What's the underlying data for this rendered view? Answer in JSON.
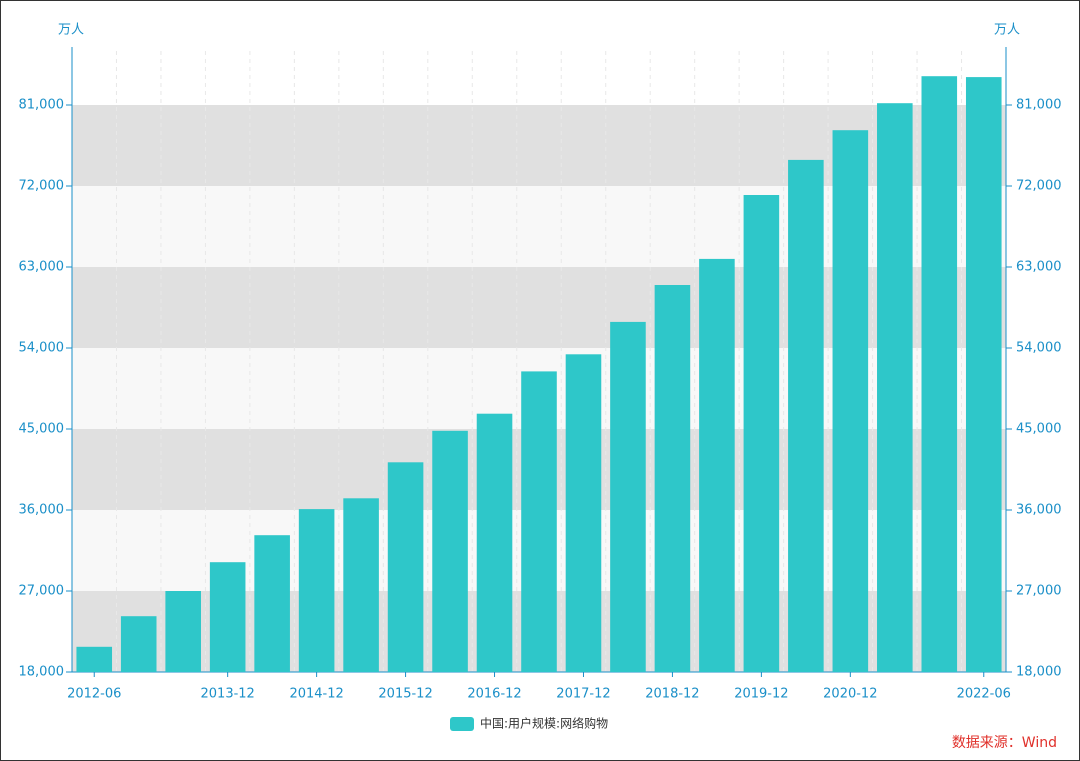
{
  "chart_data": {
    "type": "bar",
    "y_unit": "万人",
    "y2_unit": "万人",
    "categories": [
      "2012-06",
      null,
      null,
      "2013-12",
      null,
      "2014-12",
      null,
      "2015-12",
      null,
      "2016-12",
      null,
      "2017-12",
      null,
      "2018-12",
      null,
      "2019-12",
      null,
      "2020-12",
      null,
      null,
      "2022-06"
    ],
    "series": [
      {
        "name": "中国:用户规模:网络购物",
        "color": "#2ec7c9",
        "values": [
          20800,
          24200,
          27000,
          30200,
          33200,
          36100,
          37300,
          41300,
          44800,
          46700,
          51400,
          53300,
          56900,
          61000,
          63900,
          71000,
          74900,
          78200,
          81200,
          84200,
          84100
        ]
      }
    ],
    "ylim": [
      18000,
      87000
    ],
    "yticks": [
      {
        "value": 18000,
        "label": "18,000"
      },
      {
        "value": 27000,
        "label": "27,000"
      },
      {
        "value": 36000,
        "label": "36,000"
      },
      {
        "value": 45000,
        "label": "45,000"
      },
      {
        "value": 54000,
        "label": "54,000"
      },
      {
        "value": 63000,
        "label": "63,000"
      },
      {
        "value": 72000,
        "label": "72,000"
      },
      {
        "value": 81000,
        "label": "81,000"
      }
    ],
    "y2lim": [
      18000,
      87000
    ],
    "y2ticks": [
      {
        "value": 18000,
        "label": "18,000"
      },
      {
        "value": 27000,
        "label": "27,000"
      },
      {
        "value": 36000,
        "label": "36,000"
      },
      {
        "value": 45000,
        "label": "45,000"
      },
      {
        "value": 54000,
        "label": "54,000"
      },
      {
        "value": 63000,
        "label": "63,000"
      },
      {
        "value": 72000,
        "label": "72,000"
      },
      {
        "value": 81000,
        "label": "81,000"
      }
    ],
    "source": "数据来源：Wind"
  }
}
